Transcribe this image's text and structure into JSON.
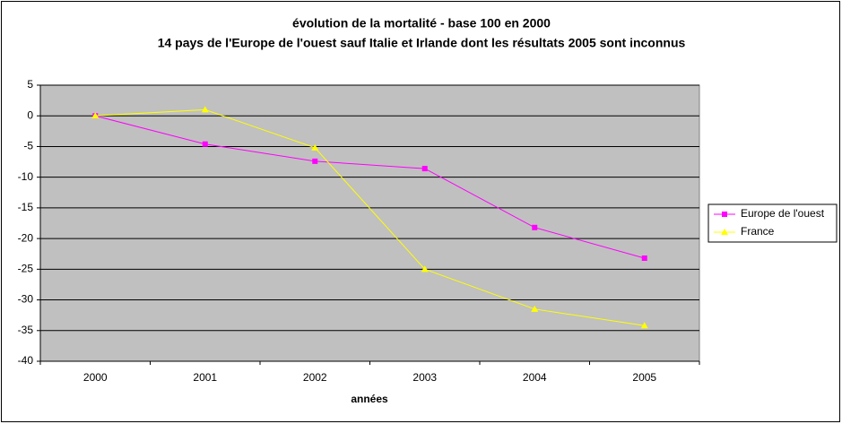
{
  "chart_data": {
    "type": "line",
    "title": "évolution de la mortalité - base 100 en 2000",
    "subtitle": "14 pays de l'Europe de l'ouest sauf Italie et Irlande dont les résultats 2005 sont inconnus",
    "x_label": "années",
    "categories": [
      "2000",
      "2001",
      "2002",
      "2003",
      "2004",
      "2005"
    ],
    "series": [
      {
        "name": "Europe de l'ouest",
        "color": "#ff00ff",
        "marker": "square",
        "values": [
          0,
          -4.6,
          -7.4,
          -8.6,
          -18.2,
          -23.2
        ]
      },
      {
        "name": "France",
        "color": "#ffff00",
        "marker": "triangle",
        "values": [
          0,
          1,
          -5.2,
          -25,
          -31.5,
          -34.2
        ]
      }
    ],
    "ylim": [
      -40,
      5
    ],
    "yticks": [
      -40,
      -35,
      -30,
      -25,
      -20,
      -15,
      -10,
      -5,
      0,
      5
    ],
    "grid": true,
    "plot_background": "#c0c0c0",
    "legend": "right"
  }
}
